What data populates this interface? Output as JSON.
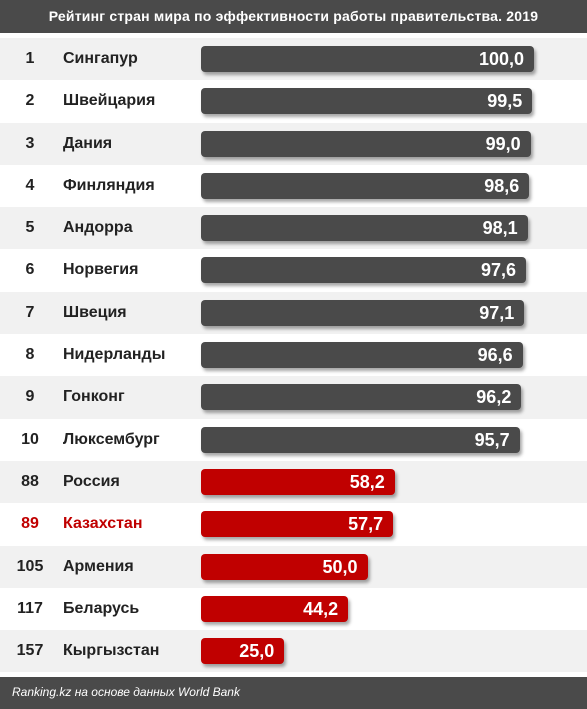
{
  "chart_data": {
    "type": "bar",
    "title": "Рейтинг стран мира по эффективности работы правительства. 2019",
    "ranks": [
      "1",
      "2",
      "3",
      "4",
      "5",
      "6",
      "7",
      "8",
      "9",
      "10",
      "88",
      "89",
      "105",
      "117",
      "157"
    ],
    "categories": [
      "Сингапур",
      "Швейцария",
      "Дания",
      "Финляндия",
      "Андорра",
      "Норвегия",
      "Швеция",
      "Нидерланды",
      "Гонконг",
      "Люксембург",
      "Россия",
      "Казахстан",
      "Армения",
      "Беларусь",
      "Кыргызстан"
    ],
    "values": [
      100.0,
      99.5,
      99.0,
      98.6,
      98.1,
      97.6,
      97.1,
      96.6,
      96.2,
      95.7,
      58.2,
      57.7,
      50.0,
      44.2,
      25.0
    ],
    "value_labels": [
      "100,0",
      "99,5",
      "99,0",
      "98,6",
      "98,1",
      "97,6",
      "97,1",
      "96,6",
      "96,2",
      "95,7",
      "58,2",
      "57,7",
      "50,0",
      "44,2",
      "25,0"
    ],
    "bar_colors": [
      "#4a4a4a",
      "#4a4a4a",
      "#4a4a4a",
      "#4a4a4a",
      "#4a4a4a",
      "#4a4a4a",
      "#4a4a4a",
      "#4a4a4a",
      "#4a4a4a",
      "#4a4a4a",
      "#c00000",
      "#c00000",
      "#c00000",
      "#c00000",
      "#c00000"
    ],
    "highlighted_category": "Казахстан",
    "highlight_color": "#c00000",
    "xlim": [
      0,
      100
    ],
    "grid": false,
    "legend": "none"
  },
  "source": "Ranking.kz на основе данных World Bank"
}
